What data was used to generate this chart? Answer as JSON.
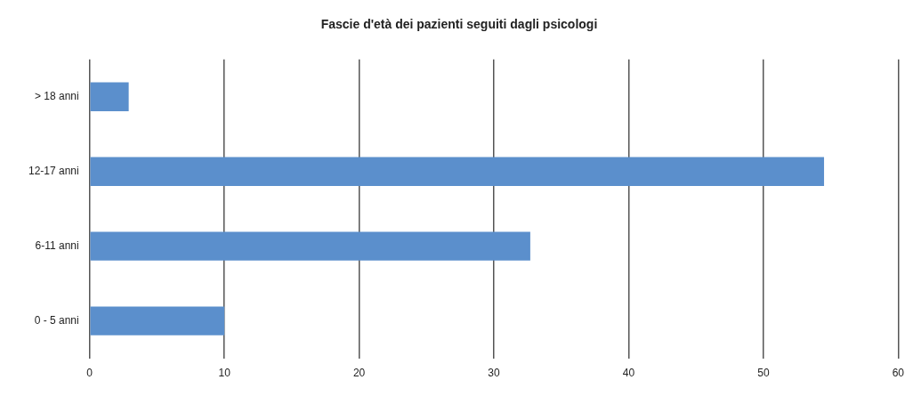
{
  "chart_data": {
    "type": "bar",
    "orientation": "horizontal",
    "title": "Fascie d'età dei pazienti seguiti dagli psicologi",
    "categories": [
      "> 18 anni",
      "12-17 anni",
      "6-11 anni",
      "0 - 5 anni"
    ],
    "values": [
      2.9,
      54.5,
      32.7,
      10
    ],
    "color": "#5b8fcc",
    "xlim": [
      0,
      60
    ],
    "xticks": [
      0,
      10,
      20,
      30,
      40,
      50,
      60
    ],
    "grid": "x",
    "legend": false
  }
}
